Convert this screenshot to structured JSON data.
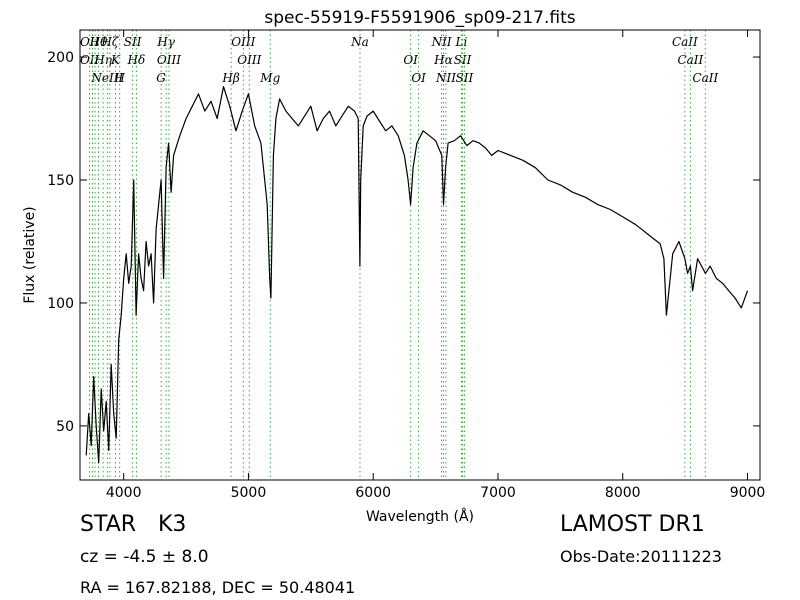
{
  "chart_data": {
    "type": "line",
    "title": "spec-55919-F5591906_sp09-217.fits",
    "xlabel": "Wavelength (Å)",
    "ylabel": "Flux (relative)",
    "xlim": [
      3650,
      9100
    ],
    "ylim": [
      28,
      211
    ],
    "xticks": [
      4000,
      5000,
      6000,
      7000,
      8000,
      9000
    ],
    "yticks": [
      50,
      100,
      150,
      200
    ],
    "grid": false,
    "line_color": "#000000",
    "marker_color": "#33aa33",
    "series": [
      {
        "x": [
          3700,
          3720,
          3740,
          3760,
          3780,
          3800,
          3820,
          3840,
          3860,
          3880,
          3900,
          3920,
          3940,
          3960,
          3980,
          4000,
          4020,
          4040,
          4060,
          4080,
          4100,
          4120,
          4140,
          4160,
          4180,
          4200,
          4220,
          4240,
          4260,
          4280,
          4300,
          4320,
          4340,
          4360,
          4380,
          4400,
          4450,
          4500,
          4550,
          4600,
          4650,
          4700,
          4750,
          4800,
          4850,
          4900,
          4950,
          5000,
          5050,
          5100,
          5150,
          5170,
          5180,
          5190,
          5200,
          5220,
          5250,
          5300,
          5350,
          5400,
          5450,
          5500,
          5550,
          5600,
          5650,
          5700,
          5750,
          5800,
          5850,
          5880,
          5893,
          5900,
          5920,
          5950,
          6000,
          6050,
          6100,
          6150,
          6200,
          6250,
          6280,
          6300,
          6320,
          6350,
          6400,
          6450,
          6500,
          6550,
          6563,
          6580,
          6600,
          6650,
          6700,
          6750,
          6800,
          6850,
          6900,
          6950,
          7000,
          7100,
          7200,
          7300,
          7400,
          7500,
          7600,
          7700,
          7800,
          7900,
          8000,
          8100,
          8150,
          8200,
          8250,
          8300,
          8330,
          8350,
          8400,
          8450,
          8498,
          8520,
          8542,
          8560,
          8600,
          8662,
          8700,
          8750,
          8800,
          8850,
          8900,
          8950,
          9000
        ],
        "values": [
          38,
          55,
          42,
          70,
          50,
          35,
          65,
          48,
          60,
          40,
          75,
          55,
          45,
          85,
          95,
          110,
          120,
          108,
          115,
          150,
          95,
          120,
          110,
          105,
          125,
          115,
          120,
          100,
          130,
          140,
          150,
          110,
          155,
          165,
          145,
          160,
          168,
          175,
          180,
          185,
          178,
          182,
          175,
          188,
          180,
          170,
          178,
          185,
          172,
          165,
          140,
          110,
          102,
          130,
          160,
          175,
          183,
          178,
          175,
          172,
          176,
          180,
          170,
          175,
          178,
          172,
          176,
          180,
          178,
          175,
          115,
          150,
          172,
          176,
          178,
          174,
          170,
          172,
          168,
          160,
          150,
          140,
          155,
          165,
          170,
          168,
          166,
          160,
          140,
          155,
          165,
          166,
          168,
          164,
          166,
          165,
          163,
          160,
          162,
          160,
          158,
          155,
          150,
          148,
          145,
          143,
          140,
          138,
          135,
          132,
          130,
          128,
          126,
          124,
          118,
          95,
          120,
          125,
          118,
          112,
          115,
          105,
          118,
          112,
          115,
          110,
          108,
          105,
          102,
          98,
          105
        ]
      }
    ],
    "lines": [
      {
        "x": 3727,
        "labels": [
          "OII",
          "OII"
        ]
      },
      {
        "x": 3750,
        "labels": [
          ""
        ]
      },
      {
        "x": 3771,
        "labels": [
          ""
        ]
      },
      {
        "x": 3798,
        "labels": [
          "Hθ"
        ]
      },
      {
        "x": 3835,
        "labels": [
          "Hη"
        ]
      },
      {
        "x": 3869,
        "labels": [
          "NeIII"
        ]
      },
      {
        "x": 3889,
        "labels": [
          "Hζ"
        ]
      },
      {
        "x": 3934,
        "labels": [
          "K"
        ]
      },
      {
        "x": 3968,
        "labels": [
          "H"
        ]
      },
      {
        "x": 4072,
        "labels": [
          "SII"
        ]
      },
      {
        "x": 4102,
        "labels": [
          "Hδ"
        ]
      },
      {
        "x": 4300,
        "labels": [
          "G"
        ]
      },
      {
        "x": 4340,
        "labels": [
          "Hγ"
        ]
      },
      {
        "x": 4363,
        "labels": [
          "OIII"
        ]
      },
      {
        "x": 4861,
        "labels": [
          "Hβ"
        ]
      },
      {
        "x": 4959,
        "labels": [
          "OIII"
        ]
      },
      {
        "x": 5007,
        "labels": [
          "OIII"
        ]
      },
      {
        "x": 5175,
        "labels": [
          "Mg"
        ]
      },
      {
        "x": 5894,
        "labels": [
          "Na"
        ]
      },
      {
        "x": 6300,
        "labels": [
          "OI"
        ]
      },
      {
        "x": 6364,
        "labels": [
          "OI"
        ]
      },
      {
        "x": 6548,
        "labels": [
          "NII"
        ]
      },
      {
        "x": 6563,
        "labels": [
          "Hα"
        ]
      },
      {
        "x": 6583,
        "labels": [
          "NII"
        ]
      },
      {
        "x": 6707,
        "labels": [
          "Li"
        ]
      },
      {
        "x": 6716,
        "labels": [
          "SII"
        ]
      },
      {
        "x": 6731,
        "labels": [
          "SII"
        ]
      },
      {
        "x": 8498,
        "labels": [
          "CaII"
        ]
      },
      {
        "x": 8542,
        "labels": [
          "CaII"
        ]
      },
      {
        "x": 8662,
        "labels": [
          "CaII"
        ]
      }
    ]
  },
  "info": {
    "class": "STAR",
    "subclass": "K3",
    "survey": "LAMOST DR1",
    "redshift": "cz = -4.5 ± 8.0",
    "obsdate": "Obs-Date:20111223",
    "radec": "RA = 167.82188, DEC = 50.48041"
  }
}
